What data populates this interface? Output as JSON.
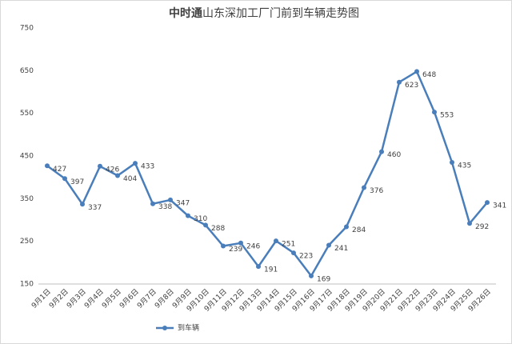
{
  "chart_data": {
    "type": "line",
    "title": [
      "中时通",
      "山东深加工厂门前到车辆走势图"
    ],
    "categories": [
      "9月1日",
      "9月2日",
      "9月3日",
      "9月4日",
      "9月5日",
      "9月6日",
      "9月7日",
      "9月8日",
      "9月9日",
      "9月10日",
      "9月11日",
      "9月12日",
      "9月13日",
      "9月14日",
      "9月15日",
      "9月16日",
      "9月17日",
      "9月18日",
      "9月19日",
      "9月20日",
      "9月21日",
      "9月22日",
      "9月23日",
      "9月24日",
      "9月25日",
      "9月26日"
    ],
    "series": [
      {
        "name": "到车辆",
        "color": "#4a7ebb",
        "values": [
          427,
          397,
          337,
          426,
          404,
          433,
          338,
          347,
          310,
          288,
          239,
          246,
          191,
          251,
          223,
          169,
          241,
          284,
          376,
          460,
          623,
          648,
          553,
          435,
          292,
          341
        ]
      }
    ],
    "ylim": [
      150,
      750
    ],
    "yticks": [
      150,
      250,
      350,
      450,
      550,
      650,
      750
    ],
    "grid": false,
    "legend": "bottom-left"
  }
}
